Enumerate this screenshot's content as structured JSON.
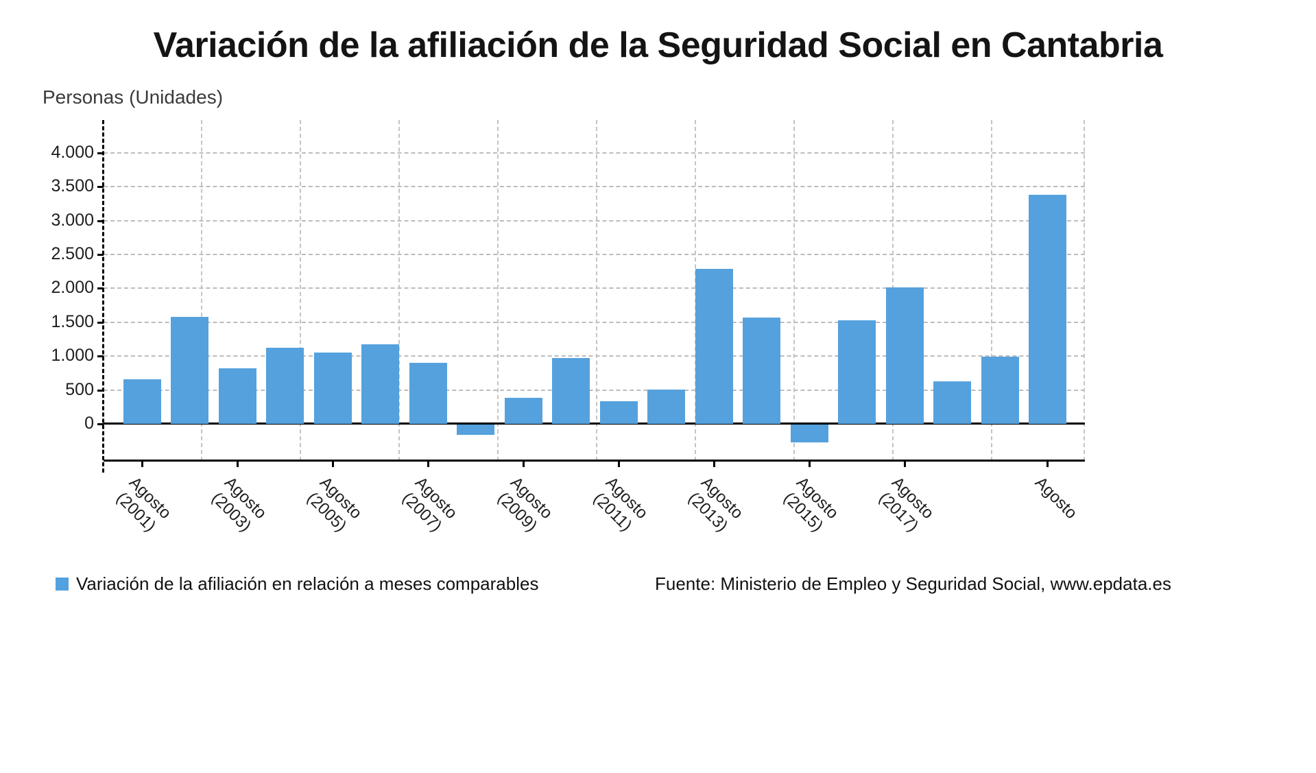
{
  "title": "Variación de la afiliación de la Seguridad Social en Cantabria",
  "y_axis_title": "Personas (Unidades)",
  "legend": {
    "label": "Variación de la afiliación en relación a meses comparables",
    "swatch_color": "#53a1df"
  },
  "source": "Fuente: Ministerio de Empleo y Seguridad Social, www.epdata.es",
  "chart_data": {
    "type": "bar",
    "title": "Variación de la afiliación de la Seguridad Social en Cantabria",
    "xlabel": "",
    "ylabel": "Personas (Unidades)",
    "bar_color": "#55a1dd",
    "grid": "dashed",
    "ylim": [
      -550,
      4500
    ],
    "n_bars": 20,
    "values": [
      660,
      1580,
      820,
      1120,
      1050,
      1170,
      900,
      -150,
      380,
      970,
      330,
      510,
      2290,
      1570,
      -260,
      1530,
      2010,
      630,
      990,
      3380
    ],
    "y_ticks": [
      {
        "value": 0,
        "label": "0"
      },
      {
        "value": 500,
        "label": "500"
      },
      {
        "value": 1000,
        "label": "1.000"
      },
      {
        "value": 1500,
        "label": "1.500"
      },
      {
        "value": 2000,
        "label": "2.000"
      },
      {
        "value": 2500,
        "label": "2.500"
      },
      {
        "value": 3000,
        "label": "3.000"
      },
      {
        "value": 3500,
        "label": "3.500"
      },
      {
        "value": 4000,
        "label": "4.000"
      }
    ],
    "x_tick_labels": [
      {
        "bar_index": 0,
        "line1": "Agosto",
        "line2": "(2001)"
      },
      {
        "bar_index": 2,
        "line1": "Agosto",
        "line2": "(2003)"
      },
      {
        "bar_index": 4,
        "line1": "Agosto",
        "line2": "(2005)"
      },
      {
        "bar_index": 6,
        "line1": "Agosto",
        "line2": "(2007)"
      },
      {
        "bar_index": 8,
        "line1": "Agosto",
        "line2": "(2009)"
      },
      {
        "bar_index": 10,
        "line1": "Agosto",
        "line2": "(2011)"
      },
      {
        "bar_index": 12,
        "line1": "Agosto",
        "line2": "(2013)"
      },
      {
        "bar_index": 14,
        "line1": "Agosto",
        "line2": "(2015)"
      },
      {
        "bar_index": 16,
        "line1": "Agosto",
        "line2": "(2017)"
      },
      {
        "bar_index": 19,
        "line1": "Agosto",
        "line2": ""
      }
    ]
  }
}
